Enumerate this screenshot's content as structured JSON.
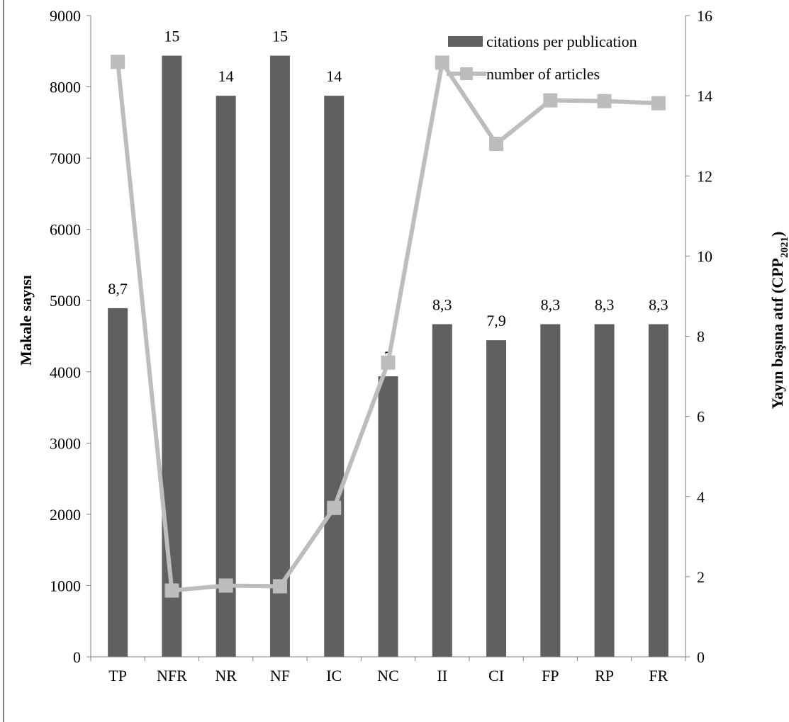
{
  "chart_data": {
    "type": "bar",
    "categories": [
      "TP",
      "NFR",
      "NR",
      "NF",
      "IC",
      "NC",
      "II",
      "CI",
      "FP",
      "RP",
      "FR"
    ],
    "series": [
      {
        "name": "citations per publication",
        "type": "bar",
        "axis": "right",
        "values": [
          8.7,
          15,
          14,
          15,
          14,
          7,
          8.3,
          7.9,
          8.3,
          8.3,
          8.3
        ],
        "labels": [
          "8,7",
          "15",
          "14",
          "15",
          "14",
          "7",
          "8,3",
          "7,9",
          "8,3",
          "8,3",
          "8,3"
        ],
        "color": "#606060"
      },
      {
        "name": "number of articles",
        "type": "line",
        "axis": "left",
        "values": [
          8350,
          930,
          1000,
          990,
          2090,
          4130,
          8340,
          7200,
          7810,
          7800,
          7770
        ],
        "color": "#bdbdbd"
      }
    ],
    "ylabel": "Makale sayısı",
    "y2label": {
      "main": "Yayın başına atıf (CPP",
      "sub": "2021",
      "end": ")"
    },
    "ylim": [
      0,
      9000
    ],
    "y2lim": [
      0,
      16
    ],
    "yticks": [
      "0",
      "1000",
      "2000",
      "3000",
      "4000",
      "5000",
      "6000",
      "7000",
      "8000",
      "9000"
    ],
    "y2ticks": [
      "0",
      "2",
      "4",
      "6",
      "8",
      "10",
      "12",
      "14",
      "16"
    ],
    "legend_position": "top-right",
    "grid": false
  }
}
